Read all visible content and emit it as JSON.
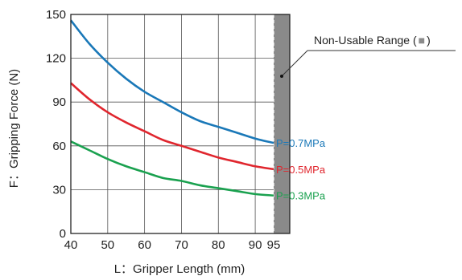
{
  "chart_data": {
    "type": "line",
    "xlabel": "L：Gripper Length (mm)",
    "ylabel": "F：Gripping Force (N)",
    "x_ticks": [
      40,
      50,
      60,
      70,
      80,
      90,
      95
    ],
    "y_ticks": [
      0,
      30,
      60,
      90,
      120,
      150
    ],
    "xlim": [
      40,
      95
    ],
    "ylim": [
      0,
      150
    ],
    "grid": true,
    "x": [
      40,
      45,
      50,
      55,
      60,
      65,
      70,
      75,
      80,
      85,
      90,
      95
    ],
    "series": [
      {
        "name": "P=0.7MPa",
        "color": "#1a78b8",
        "values": [
          146,
          130,
          117,
          106,
          97,
          90,
          83,
          77,
          73,
          69,
          65,
          62
        ]
      },
      {
        "name": "P=0.5MPa",
        "color": "#e0262e",
        "values": [
          103,
          92,
          83,
          76,
          70,
          64,
          60,
          56,
          52,
          49,
          46,
          44
        ]
      },
      {
        "name": "P=0.3MPa",
        "color": "#1aa14f",
        "values": [
          63,
          57,
          51,
          46,
          42,
          38,
          36,
          33,
          31,
          29,
          27,
          26
        ]
      }
    ],
    "non_usable_range": {
      "label": "Non-Usable Range (",
      "label_end": ")",
      "x_start": 95,
      "color": "#8a8a8a"
    }
  }
}
